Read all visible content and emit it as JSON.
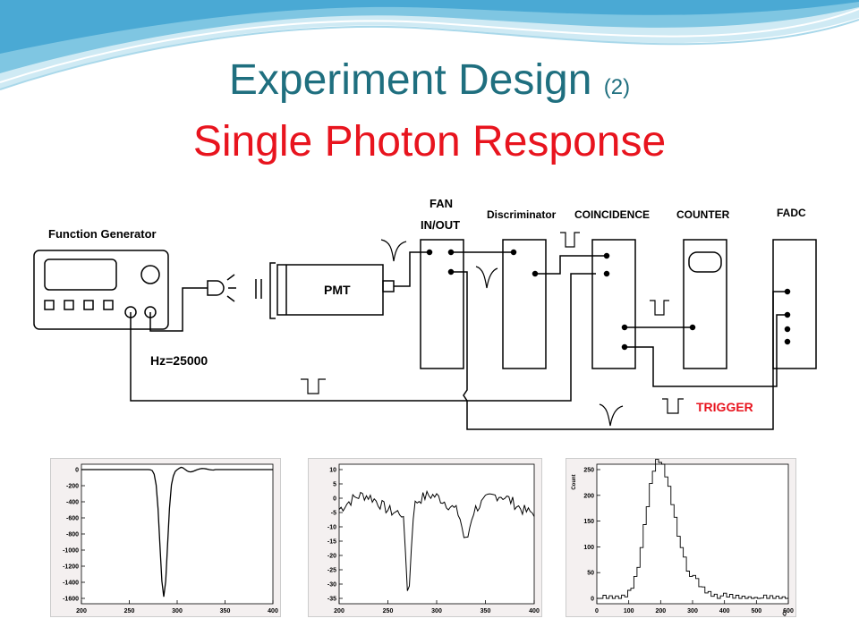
{
  "title": {
    "main": "Experiment Design",
    "number": "(2)",
    "subtitle": "Single Photon Response"
  },
  "colors": {
    "title": "#1f6f7f",
    "subtitle": "#e8141e",
    "trigger": "#e8141e",
    "wave": "#5fb8d8"
  },
  "diagram": {
    "function_generator": "Function Generator",
    "frequency": "Hz=25000",
    "pmt": "PMT",
    "fan_line1": "FAN",
    "fan_line2": "IN/OUT",
    "discriminator": "Discriminator",
    "coincidence": "COINCIDENCE",
    "counter": "COUNTER",
    "fadc": "FADC",
    "trigger": "TRIGGER"
  },
  "plots": [
    {
      "x_ticks": [
        "200",
        "250",
        "300",
        "350",
        "400"
      ],
      "y_ticks": [
        "0",
        "-200",
        "-400",
        "-600",
        "-800",
        "-1000",
        "-1200",
        "-1400",
        "-1600"
      ],
      "xlim": [
        200,
        400
      ],
      "ylim": [
        -1700,
        100
      ]
    },
    {
      "x_ticks": [
        "200",
        "250",
        "300",
        "350",
        "400"
      ],
      "y_ticks": [
        "10",
        "5",
        "0",
        "-5",
        "-10",
        "-15",
        "-20",
        "-25",
        "-30",
        "-35"
      ],
      "xlim": [
        200,
        400
      ],
      "ylim": [
        -36,
        11
      ]
    },
    {
      "x_ticks": [
        "0",
        "100",
        "200",
        "300",
        "400",
        "500",
        "600"
      ],
      "y_ticks": [
        "250",
        "200",
        "150",
        "100",
        "50",
        "0"
      ],
      "xlim": [
        0,
        620
      ],
      "ylim": [
        0,
        280
      ],
      "ylabel": "Count",
      "xlabel": "Q"
    }
  ]
}
